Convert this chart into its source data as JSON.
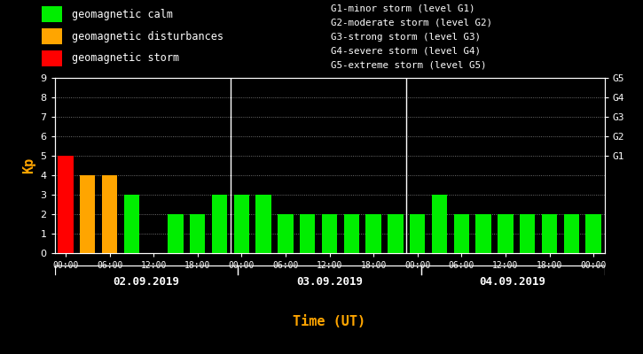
{
  "background_color": "#000000",
  "plot_bg_color": "#000000",
  "bar_values": [
    5,
    4,
    4,
    3,
    0,
    2,
    2,
    3,
    3,
    3,
    2,
    2,
    2,
    2,
    2,
    2,
    2,
    3,
    2,
    2,
    2,
    2,
    2,
    2,
    2
  ],
  "bar_colors": [
    "#ff0000",
    "#ffa500",
    "#ffa500",
    "#00ee00",
    "#000000",
    "#00ee00",
    "#00ee00",
    "#00ee00",
    "#00ee00",
    "#00ee00",
    "#00ee00",
    "#00ee00",
    "#00ee00",
    "#00ee00",
    "#00ee00",
    "#00ee00",
    "#00ee00",
    "#00ee00",
    "#00ee00",
    "#00ee00",
    "#00ee00",
    "#00ee00",
    "#00ee00",
    "#00ee00",
    "#00ee00"
  ],
  "ylim": [
    0,
    9
  ],
  "yticks": [
    0,
    1,
    2,
    3,
    4,
    5,
    6,
    7,
    8,
    9
  ],
  "ylabel": "Kp",
  "ylabel_color": "#ffa500",
  "xlabel": "Time (UT)",
  "xlabel_color": "#ffa500",
  "title_color": "#ffffff",
  "tick_color": "#ffffff",
  "axis_color": "#ffffff",
  "grid_color": "#ffffff",
  "day_labels": [
    "02.09.2019",
    "03.09.2019",
    "04.09.2019"
  ],
  "right_axis_labels": [
    "G1",
    "G2",
    "G3",
    "G4",
    "G5"
  ],
  "right_axis_positions": [
    5,
    6,
    7,
    8,
    9
  ],
  "legend_items": [
    {
      "label": "geomagnetic calm",
      "color": "#00ee00"
    },
    {
      "label": "geomagnetic disturbances",
      "color": "#ffa500"
    },
    {
      "label": "geomagnetic storm",
      "color": "#ff0000"
    }
  ],
  "storm_legend_text": [
    "G1-minor storm (level G1)",
    "G2-moderate storm (level G2)",
    "G3-strong storm (level G3)",
    "G4-severe storm (level G4)",
    "G5-extreme storm (level G5)"
  ],
  "xtick_labels": [
    "00:00",
    "06:00",
    "12:00",
    "18:00",
    "00:00",
    "06:00",
    "12:00",
    "18:00",
    "00:00",
    "06:00",
    "12:00",
    "18:00",
    "00:00"
  ],
  "xtick_positions": [
    0,
    2,
    4,
    6,
    8,
    10,
    12,
    14,
    16,
    18,
    20,
    22,
    24
  ],
  "n_bars": 25,
  "bar_width": 0.7,
  "day_divider_bars": [
    8,
    16
  ]
}
